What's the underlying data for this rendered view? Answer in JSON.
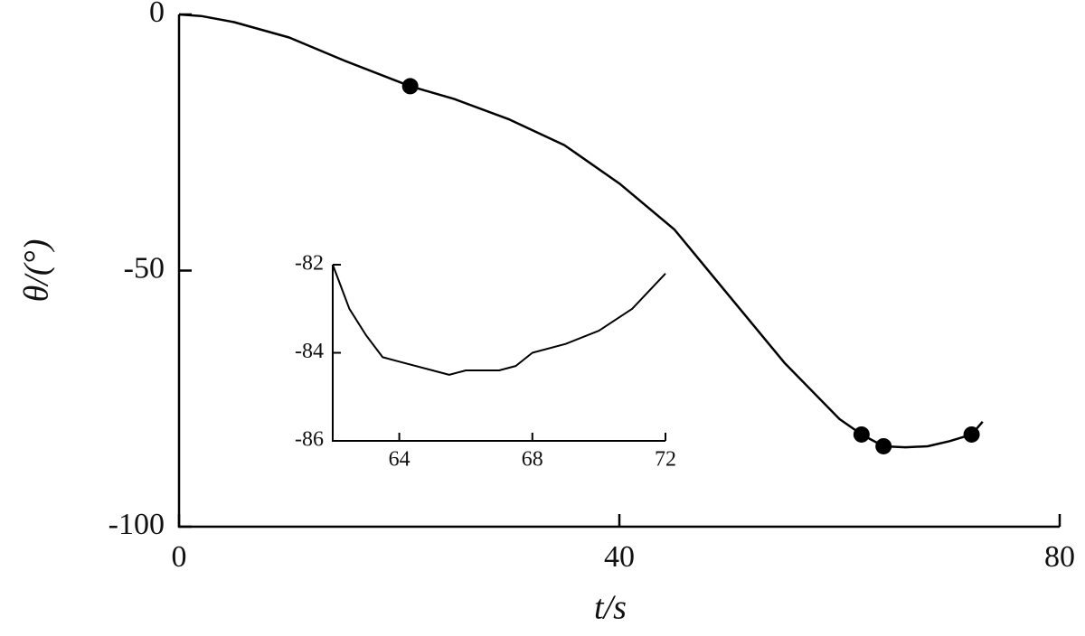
{
  "chart_data": [
    {
      "type": "line",
      "x_label": "t/s",
      "y_label": "θ/(°)",
      "xlim": [
        0,
        80
      ],
      "ylim": [
        -100,
        0
      ],
      "xticks": [
        0,
        40,
        80
      ],
      "yticks": [
        -100,
        -50,
        0
      ],
      "color": "#000000",
      "x": [
        0,
        2,
        5,
        10,
        15,
        21,
        25,
        30,
        35,
        40,
        45,
        50,
        55,
        60,
        62,
        64,
        66,
        68,
        70,
        72,
        73
      ],
      "values": [
        0,
        -0.3,
        -1.5,
        -4.5,
        -9,
        -14,
        -16.5,
        -20.5,
        -25.5,
        -33,
        -42,
        -55,
        -68,
        -79,
        -82,
        -84.3,
        -84.5,
        -84.3,
        -83.3,
        -82,
        -79.5
      ],
      "markers": {
        "x": [
          21,
          62,
          64,
          72
        ],
        "values": [
          -14,
          -82,
          -84.3,
          -82
        ]
      }
    },
    {
      "type": "line",
      "xlim": [
        62,
        72
      ],
      "ylim": [
        -86,
        -82
      ],
      "xticks": [
        64,
        68,
        72
      ],
      "yticks": [
        -86,
        -84,
        -82
      ],
      "color": "#000000",
      "x": [
        62,
        62.5,
        63,
        63.5,
        64,
        65,
        65.5,
        66,
        67,
        67.5,
        68,
        69,
        70,
        71,
        72
      ],
      "values": [
        -82,
        -83,
        -83.6,
        -84.1,
        -84.2,
        -84.4,
        -84.5,
        -84.4,
        -84.4,
        -84.3,
        -84,
        -83.8,
        -83.5,
        -83,
        -82.2
      ]
    }
  ]
}
